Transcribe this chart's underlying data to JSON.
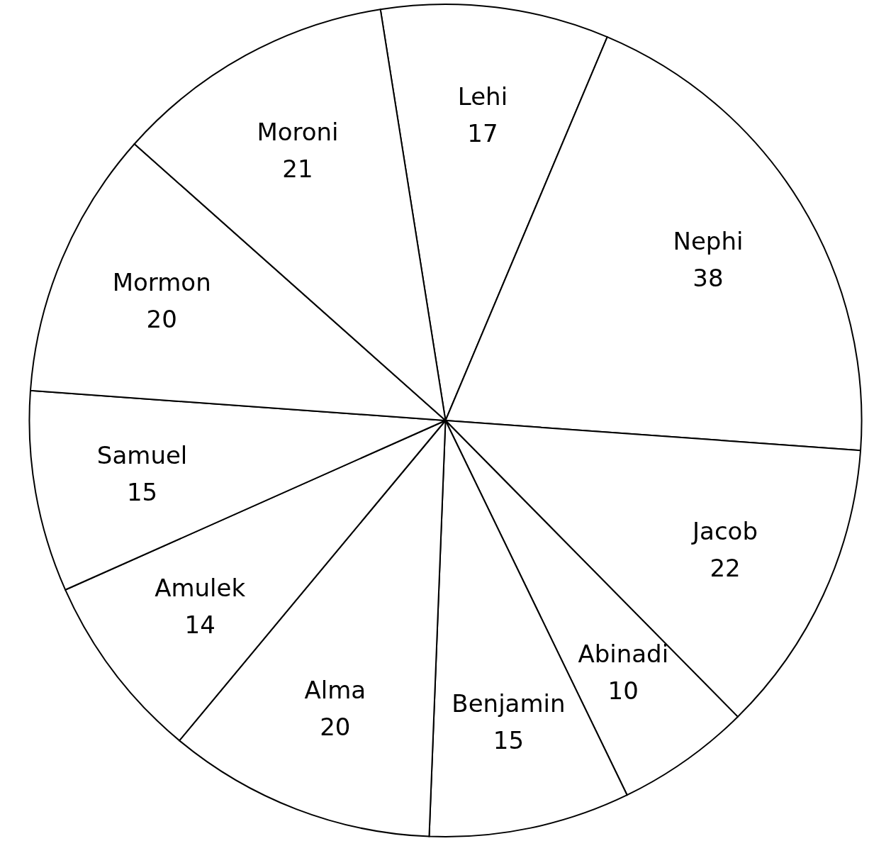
{
  "chart_data": {
    "type": "pie",
    "categories": [
      "Lehi",
      "Nephi",
      "Jacob",
      "Abinadi",
      "Benjamin",
      "Alma",
      "Amulek",
      "Samuel",
      "Mormon",
      "Moroni"
    ],
    "values": [
      17,
      38,
      22,
      10,
      15,
      20,
      14,
      15,
      20,
      21
    ],
    "colors": [
      "#ffffff",
      "#ffffff",
      "#ffffff",
      "#ffffff",
      "#ffffff",
      "#ffffff",
      "#ffffff",
      "#ffffff",
      "#ffffff",
      "#ffffff"
    ],
    "data_labels": true,
    "legend": false
  }
}
